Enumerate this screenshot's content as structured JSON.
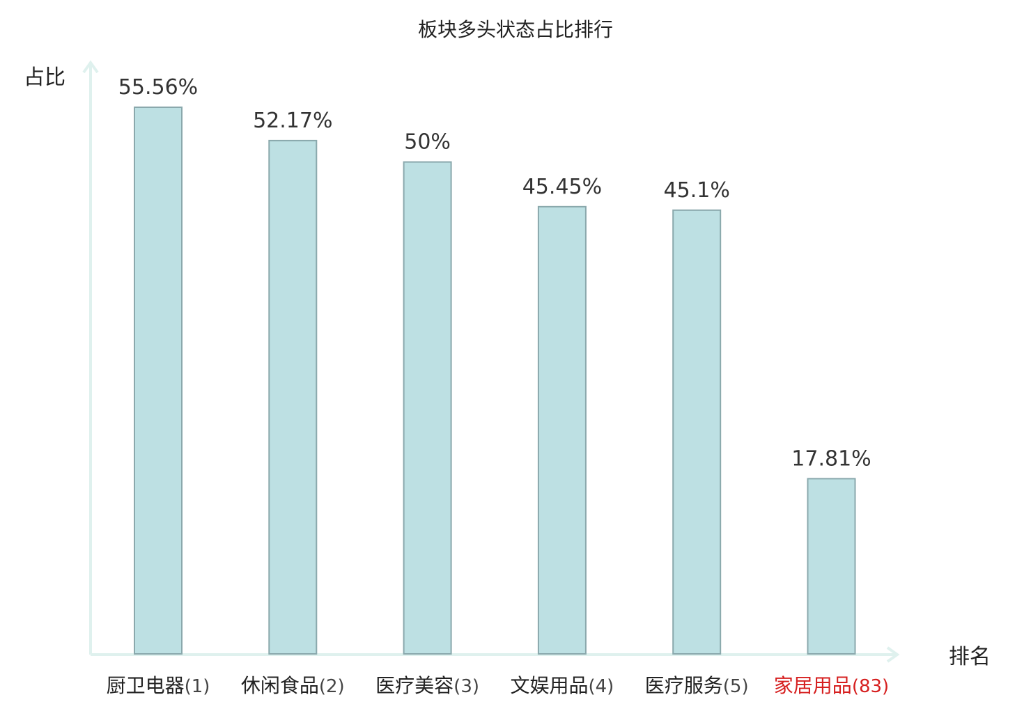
{
  "chart_data": {
    "type": "bar",
    "title": "板块多头状态占比排行",
    "ylabel": "占比",
    "xlabel": "排名",
    "categories": [
      "厨卫电器",
      "休闲食品",
      "医疗美容",
      "文娱用品",
      "医疗服务",
      "家居用品"
    ],
    "ranks": [
      "(1)",
      "(2)",
      "(3)",
      "(4)",
      "(5)",
      "(83)"
    ],
    "values": [
      55.56,
      52.17,
      50,
      45.45,
      45.1,
      17.81
    ],
    "value_labels": [
      "55.56%",
      "52.17%",
      "50%",
      "45.45%",
      "45.1%",
      "17.81%"
    ],
    "highlight_index": 5,
    "ylim": [
      0,
      60
    ],
    "grid": false,
    "legend": "none",
    "colors": {
      "bar_fill": "#bde0e3",
      "bar_stroke": "#8aa8ac",
      "axis": "#dff1ee",
      "text": "#222222",
      "value_text": "#333333",
      "highlight": "#d61f1f"
    }
  }
}
